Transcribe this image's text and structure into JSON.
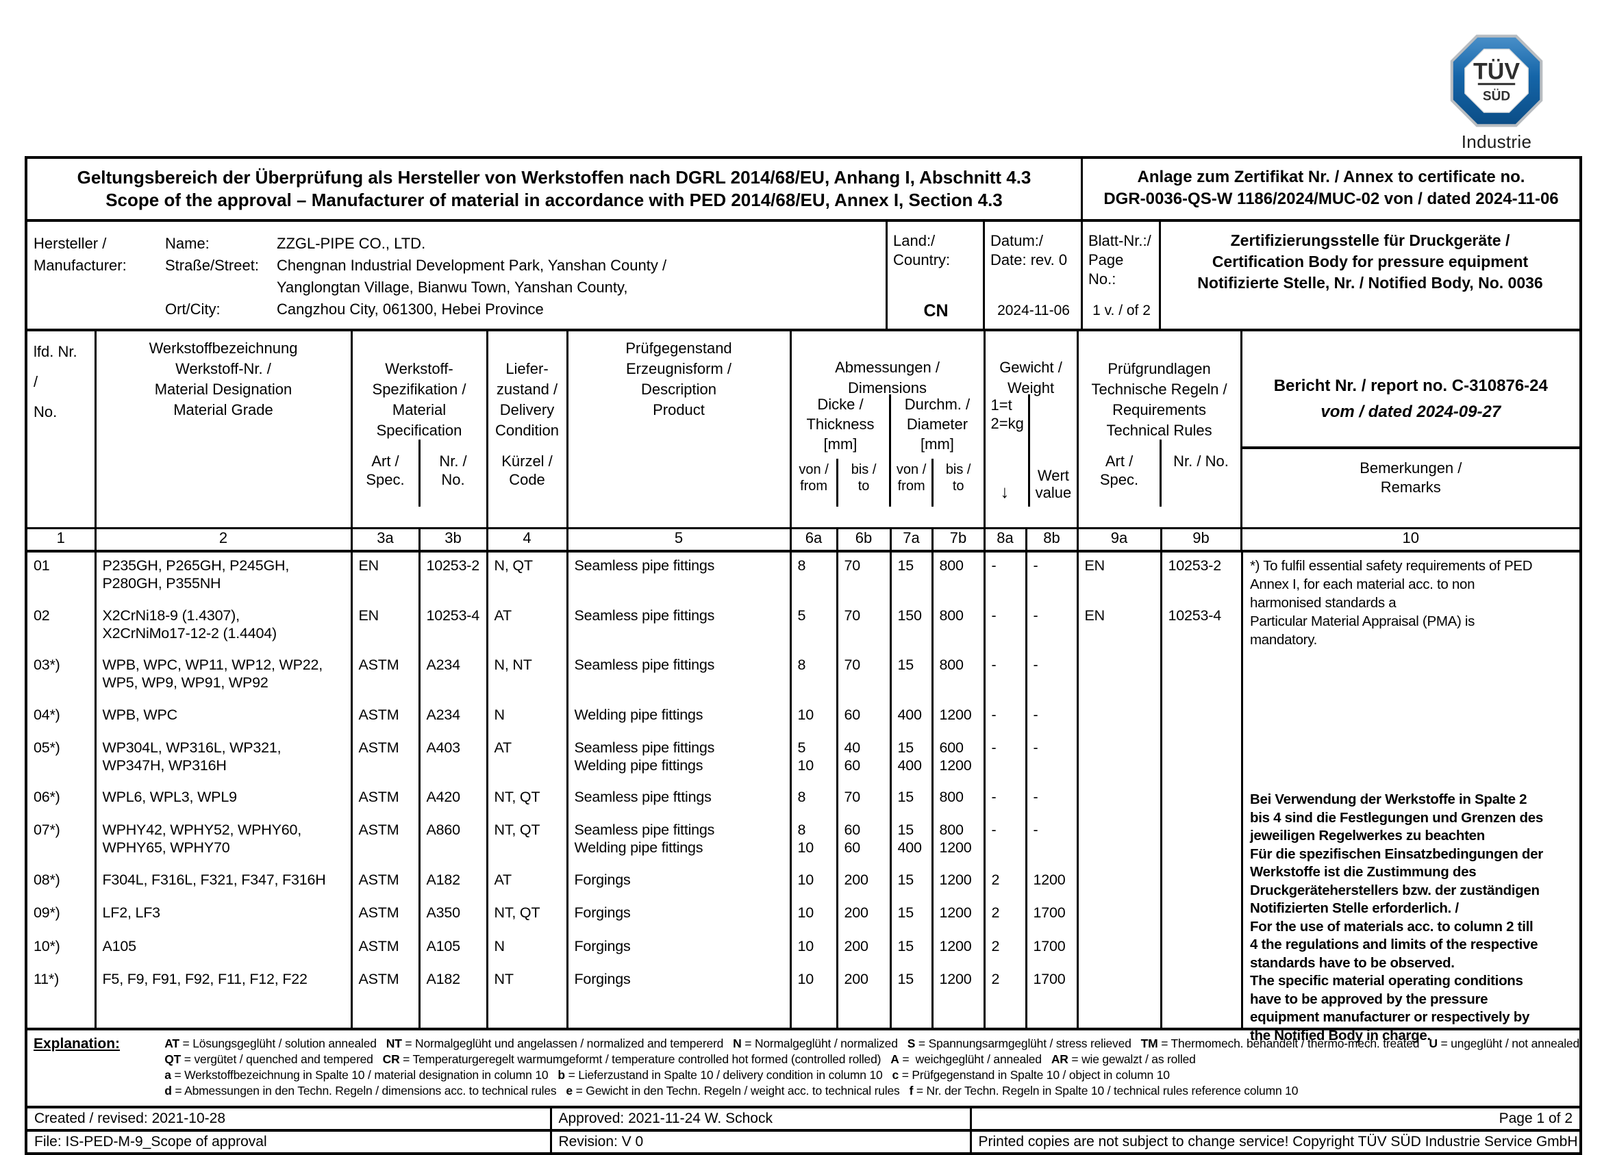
{
  "logo": {
    "tuv": "TÜV",
    "sud": "SÜD",
    "subtitle": "Industrie Service"
  },
  "header": {
    "title_de": "Geltungsbereich der Überprüfung als Hersteller von Werkstoffen nach DGRL 2014/68/EU, Anhang I, Abschnitt 4.3",
    "title_en": "Scope of the approval – Manufacturer of material in accordance with PED 2014/68/EU, Annex I, Section 4.3",
    "annex_line1": "Anlage zum Zertifikat Nr. / Annex to certificate no.",
    "annex_line2": "DGR-0036-QS-W 1186/2024/MUC-02 von / dated 2024-11-06"
  },
  "manufacturer": {
    "label_line1": "Hersteller /",
    "label_line2": "Manufacturer:",
    "name_label": "Name:",
    "name_value": "ZZGL-PIPE CO., LTD.",
    "street_label": "Straße/Street:",
    "street_value1": "Chengnan Industrial Development Park, Yanshan County /",
    "street_value2": "Yanglongtan Village, Bianwu Town, Yanshan County,",
    "city_label": "Ort/City:",
    "city_value": "Cangzhou City, 061300, Hebei Province",
    "country_label1": "Land:/",
    "country_label2": "Country:",
    "country_value": "CN",
    "date_label1": "Datum:/",
    "date_label2": "Date: rev. 0",
    "date_value": "2024-11-06",
    "page_label1": "Blatt-Nr.:/",
    "page_label2": "Page No.:",
    "page_value": "1 v. / of 2",
    "cert_body": "Zertifizierungsstelle für Druckgeräte /\nCertification Body for pressure equipment\nNotifizierte Stelle, Nr. / Notified Body, No. 0036"
  },
  "table": {
    "head": {
      "col1": "lfd. Nr.\n/\nNo.",
      "col2": "Werkstoffbezeichnung\nWerkstoff-Nr. /\nMaterial Designation\nMaterial Grade",
      "col3": "Werkstoff-\nSpezifikation /\nMaterial\nSpecification",
      "col3a": "Art /\nSpec.",
      "col3b": "Nr. /\nNo.",
      "col4_top": "Liefer-\nzustand /\nDelivery\nCondition",
      "col4_sub": "Kürzel /\nCode",
      "col5": "Prüfgegenstand\nErzeugnisform /\nDescription\nProduct",
      "col67": "Abmessungen /\nDimensions",
      "col6": "Dicke /\nThickness\n[mm]",
      "col7": "Durchm. /\nDiameter\n[mm]",
      "col6a": "von /\nfrom",
      "col6b": "bis /\nto",
      "col7a": "von /\nfrom",
      "col7b": "bis /\nto",
      "col8": "Gewicht /\nWeight",
      "col8_units": "1=t\n2=kg",
      "col8a": "↓",
      "col8b": "Wert\nvalue",
      "col9": "Prüfgrundlagen\nTechnische Regeln /\nRequirements\nTechnical Rules",
      "col9a": "Art /\nSpec.",
      "col9b": "Nr. / No.",
      "report_line1": "Bericht Nr. / report no. C-310876-24",
      "report_line2": "vom / dated 2024-09-27",
      "col10": "Bemerkungen /\nRemarks"
    },
    "col_numbers": [
      "1",
      "2",
      "3a",
      "3b",
      "4",
      "5",
      "6a",
      "6b",
      "7a",
      "7b",
      "8a",
      "8b",
      "9a",
      "9b",
      "10"
    ],
    "rows": [
      {
        "no": "01",
        "designation": "P235GH, P265GH, P245GH,\nP280GH, P355NH",
        "spec_art": "EN",
        "spec_no": "10253-2",
        "code": "N, QT",
        "product": "Seamless pipe fittings",
        "t_from": "8",
        "t_to": "70",
        "d_from": "15",
        "d_to": "800",
        "w1": "-",
        "w2": "-",
        "rule_art": "EN",
        "rule_no": "10253-2",
        "h": 73
      },
      {
        "no": "02",
        "designation": "X2CrNi18-9 (1.4307),\nX2CrNiMo17-12-2 (1.4404)",
        "spec_art": "EN",
        "spec_no": "10253-4",
        "code": "AT",
        "product": "Seamless pipe fittings",
        "t_from": "5",
        "t_to": "70",
        "d_from": "150",
        "d_to": "800",
        "w1": "-",
        "w2": "-",
        "rule_art": "EN",
        "rule_no": "10253-4",
        "h": 72
      },
      {
        "no": "03*)",
        "designation": "WPB, WPC, WP11, WP12, WP22,\nWP5, WP9, WP91, WP92",
        "spec_art": "ASTM",
        "spec_no": "A234",
        "code": "N, NT",
        "product": "Seamless pipe fittings",
        "t_from": "8",
        "t_to": "70",
        "d_from": "15",
        "d_to": "800",
        "w1": "-",
        "w2": "-",
        "rule_art": "",
        "rule_no": "",
        "h": 73
      },
      {
        "no": "04*)",
        "designation": "WPB, WPC",
        "spec_art": "ASTM",
        "spec_no": "A234",
        "code": "N",
        "product": "Welding pipe fittings",
        "t_from": "10",
        "t_to": "60",
        "d_from": "400",
        "d_to": "1200",
        "w1": "-",
        "w2": "-",
        "rule_art": "",
        "rule_no": "",
        "h": 48
      },
      {
        "no": "05*)",
        "designation": "WP304L, WP316L, WP321,\nWP347H, WP316H",
        "spec_art": "ASTM",
        "spec_no": "A403",
        "code": "AT",
        "product": "Seamless pipe fittings\nWelding pipe fittings",
        "t_from": "5\n10",
        "t_to": "40\n60",
        "d_from": "15\n400",
        "d_to": "600\n1200",
        "w1": "-",
        "w2": "-",
        "rule_art": "",
        "rule_no": "",
        "h": 72
      },
      {
        "no": "06*)",
        "designation": "WPL6, WPL3, WPL9",
        "spec_art": "ASTM",
        "spec_no": "A420",
        "code": "NT, QT",
        "product": "Seamless pipe fttings",
        "t_from": "8",
        "t_to": "70",
        "d_from": "15",
        "d_to": "800",
        "w1": "-",
        "w2": "-",
        "rule_art": "",
        "rule_no": "",
        "h": 48
      },
      {
        "no": "07*)",
        "designation": "WPHY42, WPHY52, WPHY60,\nWPHY65, WPHY70",
        "spec_art": "ASTM",
        "spec_no": "A860",
        "code": "NT, QT",
        "product": "Seamless pipe fittings\nWelding pipe fittings",
        "t_from": "8\n10",
        "t_to": "60\n60",
        "d_from": "15\n400",
        "d_to": "800\n1200",
        "w1": "-",
        "w2": "-",
        "rule_art": "",
        "rule_no": "",
        "h": 73
      },
      {
        "no": "08*)",
        "designation": "F304L, F316L, F321, F347, F316H",
        "spec_art": "ASTM",
        "spec_no": "A182",
        "code": "AT",
        "product": "Forgings",
        "t_from": "10",
        "t_to": "200",
        "d_from": "15",
        "d_to": "1200",
        "w1": "2",
        "w2": "1200",
        "rule_art": "",
        "rule_no": "",
        "h": 48
      },
      {
        "no": "09*)",
        "designation": "LF2, LF3",
        "spec_art": "ASTM",
        "spec_no": "A350",
        "code": "NT, QT",
        "product": "Forgings",
        "t_from": "10",
        "t_to": "200",
        "d_from": "15",
        "d_to": "1200",
        "w1": "2",
        "w2": "1700",
        "rule_art": "",
        "rule_no": "",
        "h": 49
      },
      {
        "no": "10*)",
        "designation": "A105",
        "spec_art": "ASTM",
        "spec_no": "A105",
        "code": "N",
        "product": "Forgings",
        "t_from": "10",
        "t_to": "200",
        "d_from": "15",
        "d_to": "1200",
        "w1": "2",
        "w2": "1700",
        "rule_art": "",
        "rule_no": "",
        "h": 48
      },
      {
        "no": "11*)",
        "designation": "F5, F9, F91, F92, F11, F12, F22",
        "spec_art": "ASTM",
        "spec_no": "A182",
        "code": "NT",
        "product": "Forgings",
        "t_from": "10",
        "t_to": "200",
        "d_from": "15",
        "d_to": "1200",
        "w1": "2",
        "w2": "1700",
        "rule_art": "",
        "rule_no": "",
        "h": 90
      }
    ],
    "remark_note1": "*) To fulfil essential safety requirements of PED\nAnnex I, for each material acc. to non\nharmonised standards a\nParticular Material Appraisal (PMA) is\nmandatory.",
    "remark_note2": "Bei Verwendung der Werkstoffe in Spalte 2\nbis 4 sind die Festlegungen und Grenzen des\njeweiligen Regelwerkes zu beachten\nFür die spezifischen Einsatzbedingungen der\nWerkstoffe ist die Zustimmung des\nDruckgeräteherstellers bzw. der zuständigen\nNotifizierten Stelle erforderlich. /\nFor the use of materials acc. to column 2 till\n4 the regulations and limits of the respective\nstandards have to be observed.\nThe specific material operating conditions\nhave to be approved by the pressure\nequipment manufacturer or respectively by\nthe Notified Body in charge."
  },
  "explanation": {
    "label": "Explanation:",
    "lines": [
      [
        {
          "b": "AT"
        },
        {
          "t": " = Lösungsgeglüht / solution annealed   "
        },
        {
          "b": "NT"
        },
        {
          "t": " = Normalgeglüht und angelassen / normalized and tempererd   "
        },
        {
          "b": "N"
        },
        {
          "t": " = Normalgeglüht / normalized   "
        },
        {
          "b": "S"
        },
        {
          "t": " = Spannungsarmgeglüht / stress relieved   "
        },
        {
          "b": "TM"
        },
        {
          "t": " = Thermomech. behandelt / thermo-mech. treated   "
        },
        {
          "b": "U"
        },
        {
          "t": " = ungeglüht / not annealed"
        }
      ],
      [
        {
          "b": "QT"
        },
        {
          "t": " = vergütet / quenched and tempered   "
        },
        {
          "b": "CR"
        },
        {
          "t": " = Temperaturgeregelt warmumgeformt / temperature controlled hot formed (controlled rolled)   "
        },
        {
          "b": "A"
        },
        {
          "t": " =  weichgeglüht / annealed   "
        },
        {
          "b": "AR"
        },
        {
          "t": " = wie gewalzt / as rolled"
        }
      ],
      [
        {
          "b": "a"
        },
        {
          "t": " = Werkstoffbezeichnung in Spalte 10 / material designation in column 10   "
        },
        {
          "b": "b"
        },
        {
          "t": " = Lieferzustand in Spalte 10 / delivery condition in column 10   "
        },
        {
          "b": "c"
        },
        {
          "t": " = Prüfgegenstand in Spalte 10 / object in column 10"
        }
      ],
      [
        {
          "b": "d"
        },
        {
          "t": " = Abmessungen in den Techn. Regeln / dimensions acc. to technical rules   "
        },
        {
          "b": "e"
        },
        {
          "t": " = Gewicht in den Techn. Regeln / weight acc. to technical rules   "
        },
        {
          "b": "f"
        },
        {
          "t": " = Nr. der Techn. Regeln in Spalte 10 / technical rules reference column 10"
        }
      ]
    ]
  },
  "footer": {
    "created": "Created / revised: 2021-10-28",
    "approved": "Approved: 2021-11-24 W. Schock",
    "page": "Page 1 of 2",
    "file": "File: IS-PED-M-9_Scope of approval",
    "revision": "Revision:  V 0",
    "copyright": "Printed copies are not subject to change service! Copyright TÜV SÜD Industrie Service GmbH"
  },
  "colors": {
    "ink": "#000000",
    "logo_blue": "#1565a8",
    "logo_rim": "#b9bdc1"
  }
}
